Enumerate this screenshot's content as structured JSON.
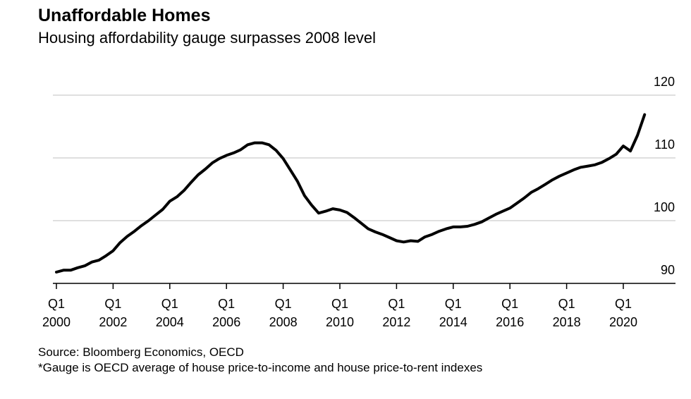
{
  "chart_data": {
    "type": "line",
    "title": "Unaffordable Homes",
    "subtitle": "Housing affordability gauge surpasses 2008 level",
    "source": "Source: Bloomberg Economics, OECD",
    "note": "*Gauge is OECD average of house price-to-income and house price-to-rent indexes",
    "categories": [
      "Q1\n2000",
      null,
      null,
      null,
      null,
      null,
      null,
      null,
      "Q1\n2002",
      null,
      null,
      null,
      null,
      null,
      null,
      null,
      "Q1\n2004",
      null,
      null,
      null,
      null,
      null,
      null,
      null,
      "Q1\n2006",
      null,
      null,
      null,
      null,
      null,
      null,
      null,
      "Q1\n2008",
      null,
      null,
      null,
      null,
      null,
      null,
      null,
      "Q1\n2010",
      null,
      null,
      null,
      null,
      null,
      null,
      null,
      "Q1\n2012",
      null,
      null,
      null,
      null,
      null,
      null,
      null,
      "Q1\n2014",
      null,
      null,
      null,
      null,
      null,
      null,
      null,
      "Q1\n2016",
      null,
      null,
      null,
      null,
      null,
      null,
      null,
      "Q1\n2018",
      null,
      null,
      null,
      null,
      null,
      null,
      null,
      "Q1\n2020",
      null,
      null,
      null
    ],
    "values": [
      91.8,
      92.1,
      92.1,
      92.5,
      92.8,
      93.4,
      93.7,
      94.4,
      95.2,
      96.5,
      97.5,
      98.3,
      99.2,
      100.0,
      100.9,
      101.8,
      103.1,
      103.8,
      104.8,
      106.1,
      107.3,
      108.2,
      109.2,
      109.9,
      110.4,
      110.8,
      111.3,
      112.1,
      112.4,
      112.4,
      112.1,
      111.2,
      109.9,
      108.1,
      106.3,
      104.0,
      102.5,
      101.2,
      101.5,
      101.9,
      101.7,
      101.3,
      100.5,
      99.6,
      98.7,
      98.2,
      97.8,
      97.3,
      96.8,
      96.6,
      96.8,
      96.7,
      97.4,
      97.8,
      98.3,
      98.7,
      99.0,
      99.0,
      99.1,
      99.4,
      99.8,
      100.4,
      101.0,
      101.5,
      102.0,
      102.8,
      103.6,
      104.5,
      105.1,
      105.8,
      106.5,
      107.1,
      107.6,
      108.1,
      108.5,
      108.7,
      108.9,
      109.3,
      109.9,
      110.6,
      111.9,
      111.1,
      113.6,
      116.9
    ],
    "color": "#000000",
    "ylim": [
      90,
      120
    ],
    "yticks": [
      90,
      100,
      110,
      120
    ],
    "grid": true
  }
}
